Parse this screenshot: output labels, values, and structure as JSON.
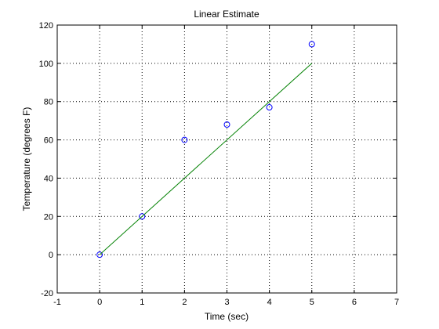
{
  "chart_data": {
    "type": "scatter",
    "title": "Linear Estimate",
    "xlabel": "Time (sec)",
    "ylabel": "Temperature (degrees F)",
    "xlim": [
      -1,
      7
    ],
    "ylim": [
      -20,
      120
    ],
    "xticks": [
      -1,
      0,
      1,
      2,
      3,
      4,
      5,
      6,
      7
    ],
    "yticks": [
      -20,
      0,
      20,
      40,
      60,
      80,
      100,
      120
    ],
    "grid": true,
    "legend": "none",
    "series": [
      {
        "kind": "markers",
        "marker": "circle",
        "color": "#0000ff",
        "x": [
          0,
          1,
          2,
          3,
          4,
          5
        ],
        "y": [
          0,
          20,
          60,
          68,
          77,
          110
        ]
      },
      {
        "kind": "line",
        "color": "#008000",
        "x": [
          0,
          5
        ],
        "y": [
          0,
          100
        ]
      }
    ]
  }
}
